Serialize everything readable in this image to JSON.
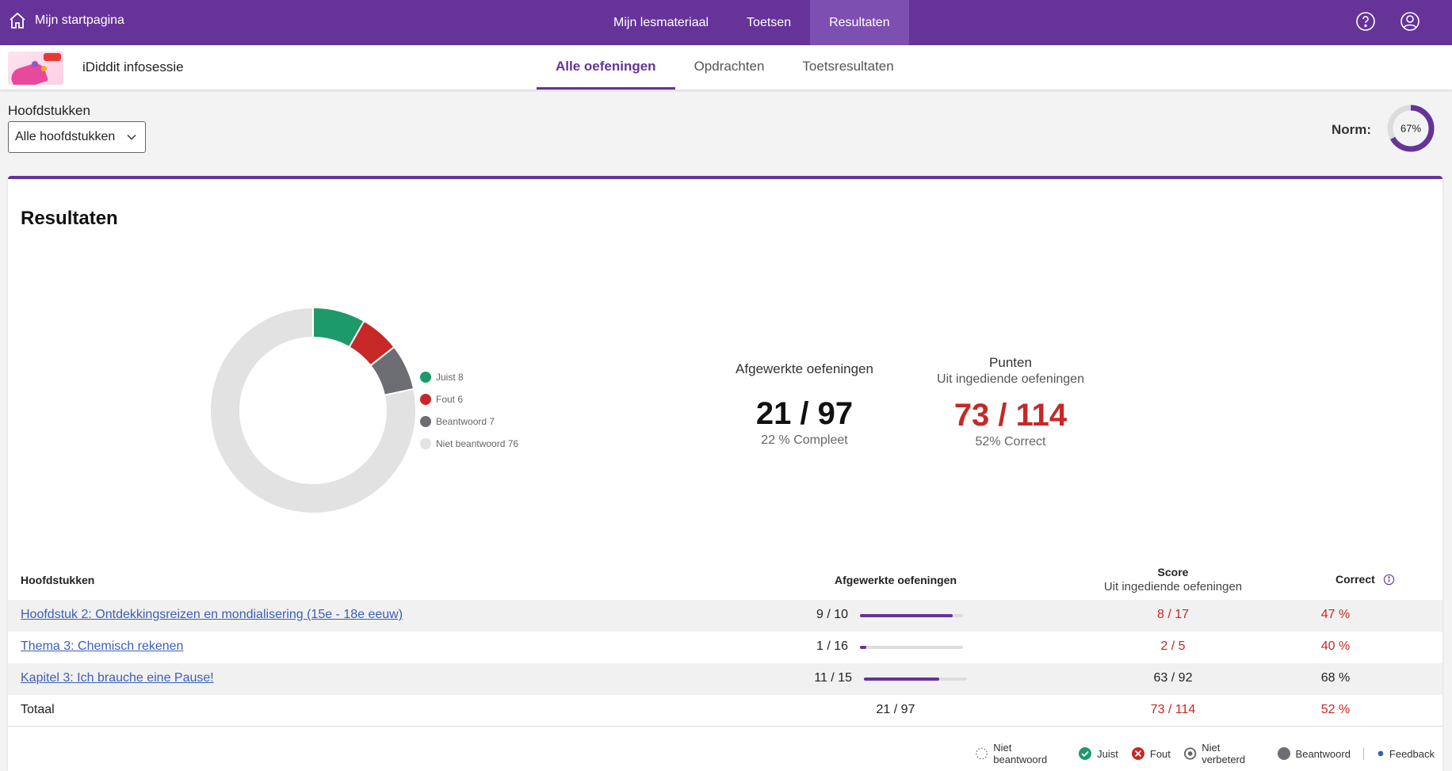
{
  "topbar": {
    "home_label": "Mijn startpagina",
    "nav": [
      "Mijn lesmateriaal",
      "Toetsen",
      "Resultaten"
    ],
    "active_nav": "Resultaten",
    "icons": [
      "help-icon",
      "account-icon"
    ]
  },
  "subheader": {
    "course_title": "iDiddit infosessie",
    "tabs": [
      "Alle oefeningen",
      "Opdrachten",
      "Toetsresultaten"
    ],
    "active_tab": "Alle oefeningen"
  },
  "filter": {
    "label": "Hoofdstukken",
    "selected": "Alle hoofdstukken"
  },
  "norm": {
    "label": "Norm:",
    "value_text": "67%",
    "value": 0.67
  },
  "results": {
    "title": "Resultaten",
    "donut": [
      {
        "label": "Juist",
        "value": 8,
        "color": "#1e9a6a",
        "legend": "Juist 8"
      },
      {
        "label": "Fout",
        "value": 6,
        "color": "#c62828",
        "legend": "Fout 6"
      },
      {
        "label": "Beantwoord",
        "value": 7,
        "color": "#6d6e73",
        "legend": "Beantwoord 7"
      },
      {
        "label": "Niet beantwoord",
        "value": 76,
        "color": "#e2e2e2",
        "legend": "Niet beantwoord 76"
      }
    ],
    "completed": {
      "heading": "Afgewerkte oefeningen",
      "value": "21 / 97",
      "pct": "22 % Compleet"
    },
    "points": {
      "heading": "Punten",
      "subheading": "Uit ingediende oefeningen",
      "value": "73 / 114",
      "pct": "52% Correct"
    }
  },
  "table": {
    "headers": {
      "chapters": "Hoofdstukken",
      "completed": "Afgewerkte oefeningen",
      "score": "Score",
      "score_sub": "Uit ingediende oefeningen",
      "correct": "Correct"
    },
    "rows": [
      {
        "name": "Hoofdstuk 2: Ontdekkingsreizen en mondialisering (15e - 18e eeuw)",
        "done": "9 / 10",
        "progress": 0.9,
        "score": "8 / 17",
        "correct": "47 %",
        "score_red": true
      },
      {
        "name": "Thema 3: Chemisch rekenen",
        "done": "1 / 16",
        "progress": 0.06,
        "score": "2 / 5",
        "correct": "40 %",
        "score_red": true
      },
      {
        "name": "Kapitel 3: Ich brauche eine Pause!",
        "done": "11 / 15",
        "progress": 0.73,
        "score": "63 / 92",
        "correct": "68 %",
        "score_red": false
      }
    ],
    "total": {
      "name": "Totaal",
      "done": "21 / 97",
      "score": "73 / 114",
      "correct": "52 %"
    }
  },
  "footer_legend": [
    "Niet beantwoord",
    "Juist",
    "Fout",
    "Niet verbeterd",
    "Beantwoord",
    "Feedback"
  ]
}
